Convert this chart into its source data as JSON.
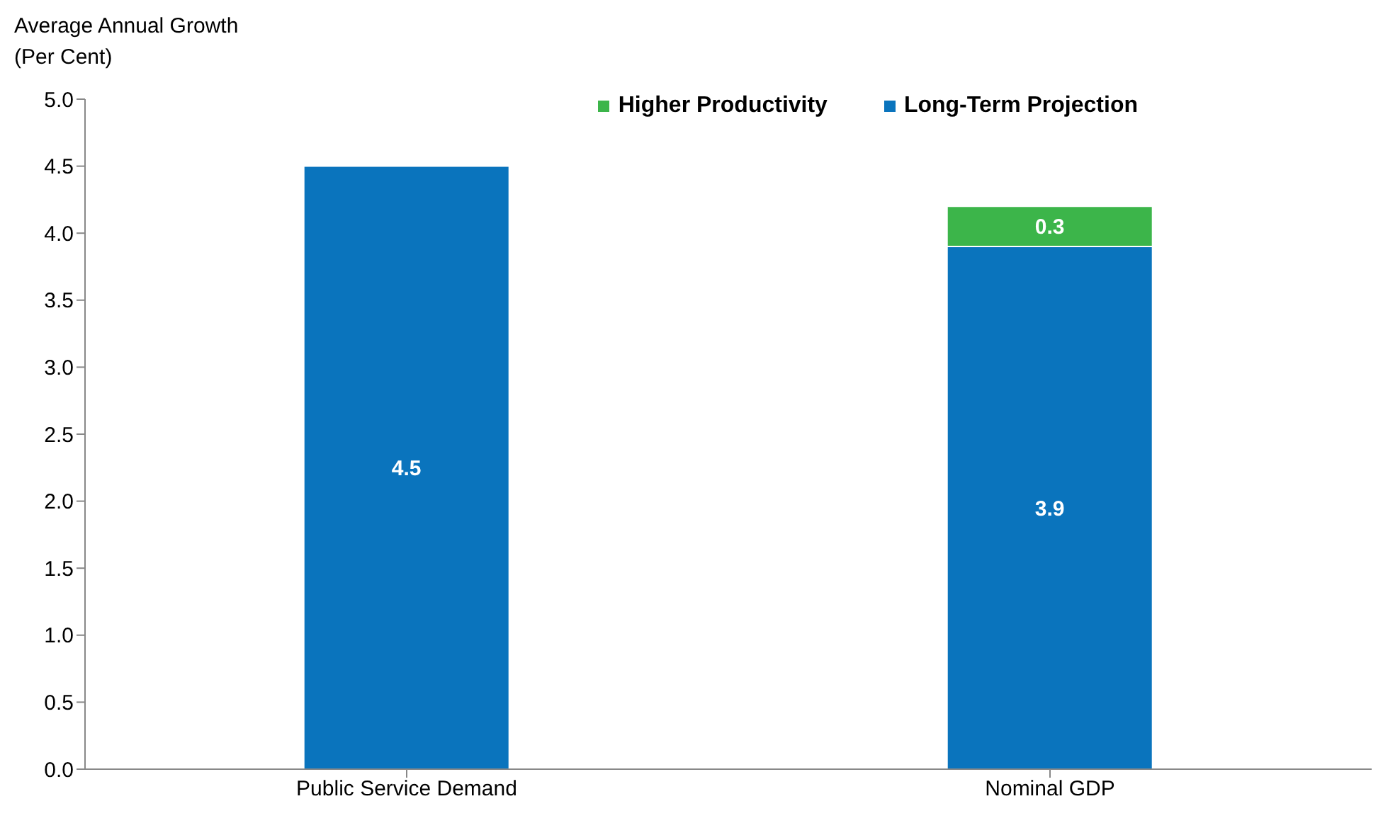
{
  "chart_data": {
    "type": "bar",
    "ylabel": "Average Annual Growth (Per Cent)",
    "categories": [
      "Public Service Demand",
      "Nominal GDP"
    ],
    "stacked": true,
    "series": [
      {
        "name": "Long-Term Projection",
        "color": "#0a74bd",
        "values": [
          4.5,
          3.9
        ]
      },
      {
        "name": "Higher Productivity",
        "color": "#3cb54a",
        "values": [
          null,
          0.3
        ]
      }
    ],
    "ylim": [
      0,
      5
    ],
    "yticks": [
      {
        "value": 0,
        "label": "0.0"
      },
      {
        "value": 0.5,
        "label": "0.5"
      },
      {
        "value": 1,
        "label": "1.0"
      },
      {
        "value": 1.5,
        "label": "1.5"
      },
      {
        "value": 2,
        "label": "2.0"
      },
      {
        "value": 2.5,
        "label": "2.5"
      },
      {
        "value": 3,
        "label": "3.0"
      },
      {
        "value": 3.5,
        "label": "3.5"
      },
      {
        "value": 4,
        "label": "4.0"
      },
      {
        "value": 4.5,
        "label": "4.5"
      },
      {
        "value": 5,
        "label": "5.0"
      }
    ],
    "grid": false,
    "legend": "top right",
    "data_labels": true
  }
}
